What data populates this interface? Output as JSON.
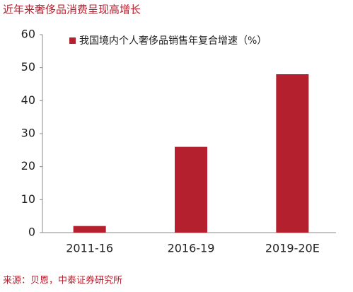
{
  "chart_data": {
    "type": "bar",
    "title": "近年来奢侈品消费呈现高增长",
    "categories": [
      "2011-16",
      "2016-19",
      "2019-20E"
    ],
    "series": [
      {
        "name": "我国境内个人奢侈品销售年复合增速（%）",
        "color": "#b5202e",
        "values": [
          2,
          26,
          48
        ]
      }
    ],
    "ylim": [
      0,
      60
    ],
    "yticks": [
      0,
      10,
      20,
      30,
      40,
      50,
      60
    ],
    "grid": false,
    "legend": "top-left",
    "source": "来源：贝恩，中泰证券研究所"
  }
}
